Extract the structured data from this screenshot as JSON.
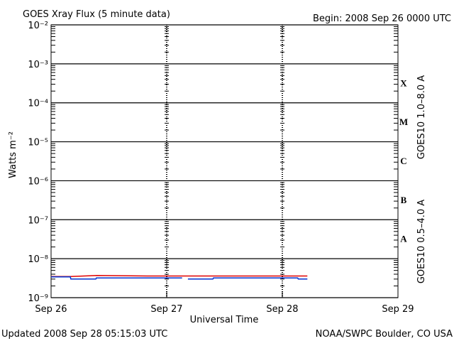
{
  "chart_data": {
    "type": "line",
    "title": "GOES Xray Flux (5 minute data)",
    "subtitle": "Begin:  2008 Sep 26 0000 UTC",
    "xlabel": "Universal Time",
    "ylabel": "Watts m⁻²",
    "footer_left": "Updated 2008 Sep 28 05:15:03 UTC",
    "footer_right": "NOAA/SWPC Boulder, CO USA",
    "log_y": true,
    "grid": true,
    "xlim": [
      0,
      72
    ],
    "xticks": [
      {
        "value": 0,
        "label": "Sep 26"
      },
      {
        "value": 24,
        "label": "Sep 27"
      },
      {
        "value": 48,
        "label": "Sep 28"
      },
      {
        "value": 72,
        "label": "Sep 29"
      }
    ],
    "ylim": [
      1e-09,
      0.01
    ],
    "yticks": [
      {
        "value": 1e-09,
        "label": "10⁻⁹"
      },
      {
        "value": 1e-08,
        "label": "10⁻⁸"
      },
      {
        "value": 1e-07,
        "label": "10⁻⁷"
      },
      {
        "value": 1e-06,
        "label": "10⁻⁶"
      },
      {
        "value": 1e-05,
        "label": "10⁻⁵"
      },
      {
        "value": 0.0001,
        "label": "10⁻⁴"
      },
      {
        "value": 0.001,
        "label": "10⁻³"
      },
      {
        "value": 0.01,
        "label": "10⁻²"
      }
    ],
    "flare_classes": [
      {
        "label": "X",
        "value": 0.0001
      },
      {
        "label": "M",
        "value": 1e-05
      },
      {
        "label": "C",
        "value": 1e-06
      },
      {
        "label": "B",
        "value": 1e-07
      },
      {
        "label": "A",
        "value": 1e-08
      }
    ],
    "series": [
      {
        "name": "GOES10 1.0–8.0 A",
        "color": "#e00000",
        "x": [
          0,
          4,
          9.5,
          20,
          30,
          40,
          53.2
        ],
        "values": [
          3.5e-09,
          3.5e-09,
          3.7e-09,
          3.6e-09,
          3.6e-09,
          3.6e-09,
          3.6e-09
        ]
      },
      {
        "name": "GOES10 0.5–4.0 A",
        "color": "#0030d0",
        "x": [
          0,
          4,
          4.1,
          9.3,
          9.4,
          20,
          27.2,
          27.3,
          28.4,
          33.6,
          33.7,
          45,
          51.2,
          51.3,
          53.2
        ],
        "values": [
          3.4e-09,
          3.4e-09,
          3e-09,
          3e-09,
          3.2e-09,
          3.2e-09,
          3.2e-09,
          null,
          3e-09,
          3e-09,
          3.2e-09,
          3.2e-09,
          3.2e-09,
          3e-09,
          3e-09
        ]
      }
    ]
  }
}
